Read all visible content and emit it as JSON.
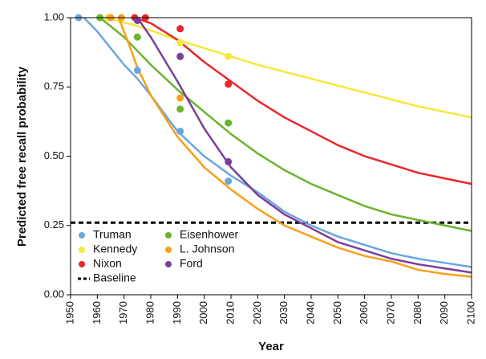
{
  "chart_data": {
    "type": "line",
    "xlabel": "Year",
    "ylabel": "Predicted free recall probability",
    "xlim": [
      1950,
      2100
    ],
    "ylim": [
      0,
      1
    ],
    "xticks": [
      1950,
      1960,
      1970,
      1980,
      1990,
      2000,
      2010,
      2020,
      2030,
      2040,
      2050,
      2060,
      2070,
      2080,
      2090,
      2100
    ],
    "yticks": [
      {
        "value": 0,
        "label": "0.00"
      },
      {
        "value": 0.25,
        "label": "0.25"
      },
      {
        "value": 0.5,
        "label": "0.50"
      },
      {
        "value": 0.75,
        "label": "0.75"
      },
      {
        "value": 1,
        "label": "1.00"
      }
    ],
    "series": [
      {
        "name": "Truman",
        "color": "#6ca7dc",
        "x": [
          1955,
          1960,
          1965,
          1970,
          1975,
          1980,
          1990,
          2000,
          2010,
          2020,
          2030,
          2040,
          2050,
          2060,
          2070,
          2080,
          2090,
          2100
        ],
        "values": [
          1.0,
          0.95,
          0.89,
          0.83,
          0.78,
          0.72,
          0.59,
          0.5,
          0.43,
          0.37,
          0.3,
          0.25,
          0.21,
          0.18,
          0.15,
          0.13,
          0.115,
          0.1
        ],
        "points": {
          "x": [
            1953,
            1975,
            1991,
            2009
          ],
          "y": [
            1.0,
            0.81,
            0.59,
            0.41
          ]
        }
      },
      {
        "name": "Eisenhower",
        "color": "#6ab42f",
        "x": [
          1961,
          1970,
          1980,
          1990,
          2000,
          2010,
          2020,
          2030,
          2040,
          2050,
          2060,
          2070,
          2080,
          2090,
          2100
        ],
        "values": [
          1.0,
          0.93,
          0.83,
          0.74,
          0.66,
          0.58,
          0.51,
          0.45,
          0.4,
          0.36,
          0.32,
          0.29,
          0.27,
          0.25,
          0.23
        ],
        "points": {
          "x": [
            1961,
            1975,
            1991,
            2009
          ],
          "y": [
            1.0,
            0.93,
            0.67,
            0.62
          ]
        }
      },
      {
        "name": "Kennedy",
        "color": "#f7e83a",
        "x": [
          1963,
          1975,
          1990,
          2000,
          2010,
          2020,
          2040,
          2060,
          2080,
          2100
        ],
        "values": [
          1.0,
          0.97,
          0.92,
          0.89,
          0.86,
          0.83,
          0.78,
          0.73,
          0.68,
          0.64
        ],
        "points": {
          "x": [
            1964,
            1991,
            2009
          ],
          "y": [
            1.0,
            0.91,
            0.86
          ]
        }
      },
      {
        "name": "L. Johnson",
        "color": "#f6a01c",
        "x": [
          1968,
          1972,
          1975,
          1980,
          1990,
          2000,
          2010,
          2020,
          2030,
          2040,
          2050,
          2060,
          2070,
          2080,
          2090,
          2100
        ],
        "values": [
          1.0,
          0.9,
          0.82,
          0.72,
          0.57,
          0.46,
          0.38,
          0.31,
          0.25,
          0.21,
          0.17,
          0.14,
          0.12,
          0.09,
          0.075,
          0.065
        ],
        "points": {
          "x": [
            1965,
            1969,
            1991
          ],
          "y": [
            1.0,
            1.0,
            0.71
          ]
        }
      },
      {
        "name": "Nixon",
        "color": "#e8282b",
        "x": [
          1974,
          1980,
          1990,
          2000,
          2010,
          2020,
          2030,
          2040,
          2050,
          2060,
          2070,
          2080,
          2090,
          2100
        ],
        "values": [
          1.0,
          0.98,
          0.92,
          0.84,
          0.77,
          0.7,
          0.64,
          0.59,
          0.54,
          0.5,
          0.47,
          0.44,
          0.42,
          0.4
        ],
        "points": {
          "x": [
            1974,
            1978,
            1991,
            2009
          ],
          "y": [
            1.0,
            1.0,
            0.96,
            0.76
          ]
        }
      },
      {
        "name": "Ford",
        "color": "#7b3f9b",
        "x": [
          1975,
          1980,
          1990,
          2000,
          2010,
          2020,
          2030,
          2040,
          2050,
          2060,
          2070,
          2080,
          2090,
          2100
        ],
        "values": [
          1.0,
          0.93,
          0.77,
          0.6,
          0.46,
          0.36,
          0.29,
          0.24,
          0.19,
          0.16,
          0.13,
          0.11,
          0.095,
          0.08
        ],
        "points": {
          "x": [
            1975,
            1991,
            2009
          ],
          "y": [
            0.99,
            0.86,
            0.48
          ]
        }
      }
    ],
    "baseline": {
      "name": "Baseline",
      "value": 0.26,
      "color": "#000000"
    }
  }
}
